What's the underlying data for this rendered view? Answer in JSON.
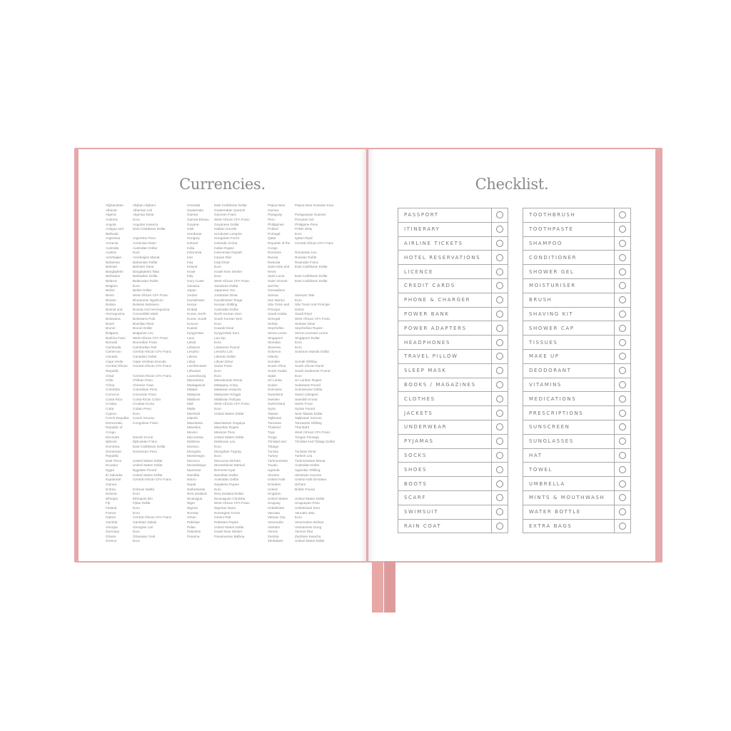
{
  "left_page": {
    "title": "Currencies.",
    "columns": [
      [
        [
          "Afghanistan",
          "Afghan Afghani"
        ],
        [
          "Albania",
          "Albanian Lek"
        ],
        [
          "Algeria",
          "Algerian Dinar"
        ],
        [
          "Andorra",
          "Euro"
        ],
        [
          "Angola",
          "Angolan Kwanza"
        ],
        [
          "Antigua and\nBarbuda",
          "East Caribbean Dollar"
        ],
        [
          "Argentina",
          "Argentine Peso"
        ],
        [
          "Armenia",
          "Armenian Dram"
        ],
        [
          "Australia",
          "Australian Dollar"
        ],
        [
          "Austria",
          "Euro"
        ],
        [
          "Azerbaijan",
          "Azerbaijani Manat"
        ],
        [
          "Bahamas",
          "Bahamian Dollar"
        ],
        [
          "Bahrain",
          "Bahraini Dinar"
        ],
        [
          "Bangladesh",
          "Bangladeshi Taka"
        ],
        [
          "Barbados",
          "Barbadian Dollar"
        ],
        [
          "Belarus",
          "Belarusian Ruble"
        ],
        [
          "Belgium",
          "Euro"
        ],
        [
          "Belize",
          "Belize Dollar"
        ],
        [
          "Benin",
          "West African CFA Franc"
        ],
        [
          "Bhutan",
          "Bhutanese Ngultrum"
        ],
        [
          "Bolivia",
          "Bolivian Boliviano"
        ],
        [
          "Bosnia and\nHerzegovina",
          "Bosnia And Herzegovina\nConvertible Mark"
        ],
        [
          "Botswana",
          "Botswana Pula"
        ],
        [
          "Brazil",
          "Brazilian Real"
        ],
        [
          "Brunei",
          "Brunei Dollar"
        ],
        [
          "Bulgaria",
          "Bulgarian Lev"
        ],
        [
          "Burkina Faso",
          "West African CFA Franc"
        ],
        [
          "Burundi",
          "Burundian Franc"
        ],
        [
          "Cambodia",
          "Cambodian Riel"
        ],
        [
          "Cameroon",
          "Central African CFA Franc"
        ],
        [
          "Canada",
          "Canadian Dollar"
        ],
        [
          "Cape Verde",
          "Cape Verdean Escudo"
        ],
        [
          "Central African\nRepublic",
          "Central African CFA Franc"
        ],
        [
          "Chad",
          "Central African CFA Franc"
        ],
        [
          "Chile",
          "Chilean Peso"
        ],
        [
          "China",
          "Chinese Yuan"
        ],
        [
          "Colombia",
          "Colombian Peso"
        ],
        [
          "Comoros",
          "Comorian Franc"
        ],
        [
          "Costa Rica",
          "Costa Rican Colón"
        ],
        [
          "Croatia",
          "Croatian Kuna"
        ],
        [
          "Cuba",
          "Cuban Peso"
        ],
        [
          "Cyprus",
          "Euro"
        ],
        [
          "Czech Republic",
          "Czech Koruna"
        ],
        [
          "Democratic\nRepublic of\nCongo",
          "Congolese Franc"
        ],
        [
          "Denmark",
          "Danish Krone"
        ],
        [
          "Djibouti",
          "Djiboutian Franc"
        ],
        [
          "Dominica",
          "East Caribbean Dollar"
        ],
        [
          "Dominican\nRepublic",
          "Dominican Peso"
        ],
        [
          "East Timor",
          "United States Dollar"
        ],
        [
          "Ecuador",
          "United States Dollar"
        ],
        [
          "Egypt",
          "Egyptian Pound"
        ],
        [
          "El Salvador",
          "United States Dollar"
        ],
        [
          "Equatorial\nGuinea",
          "Central African CFA Franc"
        ],
        [
          "Eritrea",
          "Eritrean Nakfa"
        ],
        [
          "Estonia",
          "Euro"
        ],
        [
          "Ethiopia",
          "Ethiopian Birr"
        ],
        [
          "Fiji",
          "Fijian Dollar"
        ],
        [
          "Finland",
          "Euro"
        ],
        [
          "France",
          "Euro"
        ],
        [
          "Gabon",
          "Central African CFA Franc"
        ],
        [
          "Gambia",
          "Gambian Dalasi"
        ],
        [
          "Georgia",
          "Georgian Lari"
        ],
        [
          "Germany",
          "Euro"
        ],
        [
          "Ghana",
          "Ghanaian Cedi"
        ],
        [
          "Greece",
          "Euro"
        ]
      ],
      [
        [
          "Grenada",
          "East Caribbean Dollar"
        ],
        [
          "Guatemala",
          "Guatemalan Quetzal"
        ],
        [
          "Guinea",
          "Guinean Franc"
        ],
        [
          "Guinea-Bissau",
          "West African CFA Franc"
        ],
        [
          "Guyana",
          "Guyanese Dollar"
        ],
        [
          "Haiti",
          "Haitian Gourde"
        ],
        [
          "Honduras",
          "Honduran Lempira"
        ],
        [
          "Hungary",
          "Hungarian Forint"
        ],
        [
          "Iceland",
          "Icelandic Króna"
        ],
        [
          "India",
          "Indian Rupee"
        ],
        [
          "Indonesia",
          "Indonesian Rupiah"
        ],
        [
          "Iran",
          "Iranian Rial"
        ],
        [
          "Iraq",
          "Iraqi Dinar"
        ],
        [
          "Ireland",
          "Euro"
        ],
        [
          "Israel",
          "Israeli New Shekel"
        ],
        [
          "Italy",
          "Euro"
        ],
        [
          "Ivory Coast",
          "West African CFA Franc"
        ],
        [
          "Jamaica",
          "Jamaican Dollar"
        ],
        [
          "Japan",
          "Japanese Yen"
        ],
        [
          "Jordan",
          "Jordanian Dinar"
        ],
        [
          "Kazakhstan",
          "Kazakhstani Tenge"
        ],
        [
          "Kenya",
          "Kenyan Shilling"
        ],
        [
          "Kiribati",
          "Australian Dollar"
        ],
        [
          "Korea, North",
          "North Korean Won"
        ],
        [
          "Korea, South",
          "South Korean Won"
        ],
        [
          "Kosovo",
          "Euro"
        ],
        [
          "Kuwait",
          "Kuwaiti Dinar"
        ],
        [
          "Kyrgyzstan",
          "Kyrgyzstani Som"
        ],
        [
          "Laos",
          "Lao Kip"
        ],
        [
          "Latvia",
          "Euro"
        ],
        [
          "Lebanon",
          "Lebanese Pound"
        ],
        [
          "Lesotho",
          "Lesotho Loti"
        ],
        [
          "Liberia",
          "Liberian Dollar"
        ],
        [
          "Libya",
          "Libyan Dinar"
        ],
        [
          "Liechtenstein",
          "Swiss Franc"
        ],
        [
          "Lithuania",
          "Euro"
        ],
        [
          "Luxembourg",
          "Euro"
        ],
        [
          "Macedonia",
          "Macedonian Denar"
        ],
        [
          "Madagascar",
          "Malagasy Ariary"
        ],
        [
          "Malawi",
          "Malawian Kwacha"
        ],
        [
          "Malaysia",
          "Malaysian Ringgit"
        ],
        [
          "Maldives",
          "Maldivian Rufiyaa"
        ],
        [
          "Mali",
          "West African CFA Franc"
        ],
        [
          "Malta",
          "Euro"
        ],
        [
          "Marshall\nIslands",
          "United States Dollar"
        ],
        [
          "Mauritania",
          "Mauritanian Ouguiya"
        ],
        [
          "Mauritius",
          "Mauritian Rupee"
        ],
        [
          "Mexico",
          "Mexican Peso"
        ],
        [
          "Micronesia",
          "United States Dollar"
        ],
        [
          "Moldova",
          "Moldovan Leu"
        ],
        [
          "Monaco",
          "Euro"
        ],
        [
          "Mongolia",
          "Mongolian Tögrög"
        ],
        [
          "Montenegro",
          "Euro"
        ],
        [
          "Morocco",
          "Moroccan Dirham"
        ],
        [
          "Mozambique",
          "Mozambican Metical"
        ],
        [
          "Myanmar",
          "Burmese Kyat"
        ],
        [
          "Namibia",
          "Namibian Dollar"
        ],
        [
          "Nauru",
          "Australian Dollar"
        ],
        [
          "Nepal",
          "Nepalese Rupee"
        ],
        [
          "Netherlands",
          "Euro"
        ],
        [
          "New Zealand",
          "New Zealand Dollar"
        ],
        [
          "Nicaragua",
          "Nicaraguan Córdoba"
        ],
        [
          "Niger",
          "West African CFA Franc"
        ],
        [
          "Nigeria",
          "Nigerian Naira"
        ],
        [
          "Norway",
          "Norwegian Krone"
        ],
        [
          "Oman",
          "Omani Rial"
        ],
        [
          "Pakistan",
          "Pakistani Rupee"
        ],
        [
          "Palau",
          "United States Dollar"
        ],
        [
          "Palestine",
          "Israeli New Shekel"
        ],
        [
          "Panama",
          "Panamanian Balboa"
        ]
      ],
      [
        [
          "Papua New\nGuinea",
          "Papua New Guinean Kina"
        ],
        [
          "Paraguay",
          "Paraguayan Guaraní"
        ],
        [
          "Peru",
          "Peruvian Sol"
        ],
        [
          "Philippines",
          "Philippine Peso"
        ],
        [
          "Poland",
          "Polish Złoty"
        ],
        [
          "Portugal",
          "Euro"
        ],
        [
          "Qatar",
          "Qatari Riyal"
        ],
        [
          "Republic of the\nCongo",
          "Central African CFA Franc"
        ],
        [
          "Romania",
          "Romanian Leu"
        ],
        [
          "Russia",
          "Russian Ruble"
        ],
        [
          "Rwanda",
          "Rwandan Franc"
        ],
        [
          "Saint Kitts and\nNevis",
          "East Caribbean Dollar"
        ],
        [
          "Saint Lucia",
          "East Caribbean Dollar"
        ],
        [
          "Saint Vincent\nand the\nGrenadines",
          "East Caribbean Dollar"
        ],
        [
          "Samoa",
          "Samoan Tala"
        ],
        [
          "San Marino",
          "Euro"
        ],
        [
          "São Tomé and\nPríncipe",
          "São Tomé And Príncipe\nDobra"
        ],
        [
          "Saudi Arabia",
          "Saudi Riyal"
        ],
        [
          "Senegal",
          "West African CFA Franc"
        ],
        [
          "Serbia",
          "Serbian Dinar"
        ],
        [
          "Seychelles",
          "Seychellois Rupee"
        ],
        [
          "Sierra Leone",
          "Sierra Leonean Leone"
        ],
        [
          "Singapore",
          "Singapore Dollar"
        ],
        [
          "Slovakia",
          "Euro"
        ],
        [
          "Slovenia",
          "Euro"
        ],
        [
          "Solomon\nIslands",
          "Solomon Islands Dollar"
        ],
        [
          "Somalia",
          "Somali Shilling"
        ],
        [
          "South Africa",
          "South African Rand"
        ],
        [
          "South Sudan",
          "South Sudanese Pound"
        ],
        [
          "Spain",
          "Euro"
        ],
        [
          "Sri Lanka",
          "Sri Lankan Rupee"
        ],
        [
          "Sudan",
          "Sudanese Pound"
        ],
        [
          "Suriname",
          "Surinamese Dollar"
        ],
        [
          "Swaziland",
          "Swazi Lilangeni"
        ],
        [
          "Sweden",
          "Swedish Krona"
        ],
        [
          "Switzerland",
          "Swiss Franc"
        ],
        [
          "Syria",
          "Syrian Pound"
        ],
        [
          "Taiwan",
          "New Taiwan Dollar"
        ],
        [
          "Tajikistan",
          "Tajikistani Somoni"
        ],
        [
          "Tanzania",
          "Tanzanian Shilling"
        ],
        [
          "Thailand",
          "Thai Baht"
        ],
        [
          "Togo",
          "West African CFA Franc"
        ],
        [
          "Tonga",
          "Tongan Pa'anga"
        ],
        [
          "Trinidad and\nTobago",
          "Trinidad And Tobago Dollar"
        ],
        [
          "Tunisia",
          "Tunisian Dinar"
        ],
        [
          "Turkey",
          "Turkish Lira"
        ],
        [
          "Turkmenistan",
          "Turkmenistan Manat"
        ],
        [
          "Tuvalu",
          "Australian Dollar"
        ],
        [
          "Uganda",
          "Ugandan Shilling"
        ],
        [
          "Ukraine",
          "Ukrainian Hryvnia"
        ],
        [
          "United Arab\nEmirates",
          "United Arab Emirates\nDirham"
        ],
        [
          "United\nKingdom",
          "British Pound"
        ],
        [
          "United States",
          "United States Dollar"
        ],
        [
          "Uruguay",
          "Uruguayan Peso"
        ],
        [
          "Uzbekistan",
          "Uzbekistani Som"
        ],
        [
          "Vanuatu",
          "Vanuatu Vatu"
        ],
        [
          "Vatican City",
          "Euro"
        ],
        [
          "Venezuela",
          "Venezuelan Bolívar"
        ],
        [
          "Vietnam",
          "Vietnamese Dong"
        ],
        [
          "Yemen",
          "Yemeni Rial"
        ],
        [
          "Zambia",
          "Zambian Kwacha"
        ],
        [
          "Zimbabwe",
          "United States Dollar"
        ]
      ]
    ]
  },
  "right_page": {
    "title": "Checklist.",
    "left_list": [
      "PASSPORT",
      "ITINERARY",
      "AIRLINE TICKETS",
      "HOTEL RESERVATIONS",
      "LICENCE",
      "CREDIT CARDS",
      "PHONE & CHARGER",
      "POWER BANK",
      "POWER ADAPTERS",
      "HEADPHONES",
      "TRAVEL PILLOW",
      "SLEEP MASK",
      "BOOKS / MAGAZINES",
      "CLOTHES",
      "JACKETS",
      "UNDERWEAR",
      "PYJAMAS",
      "SOCKS",
      "SHOES",
      "BOOTS",
      "SCARF",
      "SWIMSUIT",
      "RAIN COAT"
    ],
    "right_list": [
      "TOOTHBRUSH",
      "TOOTHPASTE",
      "SHAMPOO",
      "CONDITIONER",
      "SHOWER GEL",
      "MOISTURISER",
      "BRUSH",
      "SHAVING KIT",
      "SHOWER CAP",
      "TISSUES",
      "MAKE UP",
      "DEODORANT",
      "VITAMINS",
      "MEDICATIONS",
      "PRESCRIPTIONS",
      "SUNSCREEN",
      "SUNGLASSES",
      "HAT",
      "TOWEL",
      "UMBRELLA",
      "MINTS & MOUTHWASH",
      "WATER BOTTLE",
      "EXTRA BAGS"
    ]
  },
  "colors": {
    "cover": "#e5a9ac",
    "ribbon": "#e7a8a6",
    "text": "#888888"
  }
}
